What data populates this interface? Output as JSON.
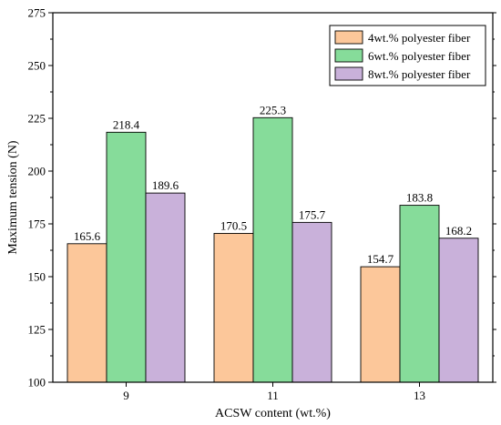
{
  "chart_data": {
    "type": "bar",
    "title": "",
    "xlabel": "ACSW content (wt.%)",
    "ylabel": "Maximum tension (N)",
    "categories": [
      "9",
      "11",
      "13"
    ],
    "ylim": [
      100,
      275
    ],
    "yticks": [
      100,
      125,
      150,
      175,
      200,
      225,
      250,
      275
    ],
    "grid": false,
    "legend_position": "top-right",
    "series": [
      {
        "name": "4wt.% polyester fiber",
        "color": "#fcc79a",
        "values": [
          165.6,
          170.5,
          154.7
        ],
        "labels": [
          "165.6",
          "170.5",
          "154.7"
        ]
      },
      {
        "name": "6wt.% polyester fiber",
        "color": "#86dc9a",
        "values": [
          218.4,
          225.3,
          183.8
        ],
        "labels": [
          "218.4",
          "225.3",
          "183.8"
        ]
      },
      {
        "name": "8wt.% polyester fiber",
        "color": "#c9b1da",
        "values": [
          189.6,
          175.7,
          168.2
        ],
        "labels": [
          "189.6",
          "175.7",
          "168.2"
        ]
      }
    ]
  }
}
